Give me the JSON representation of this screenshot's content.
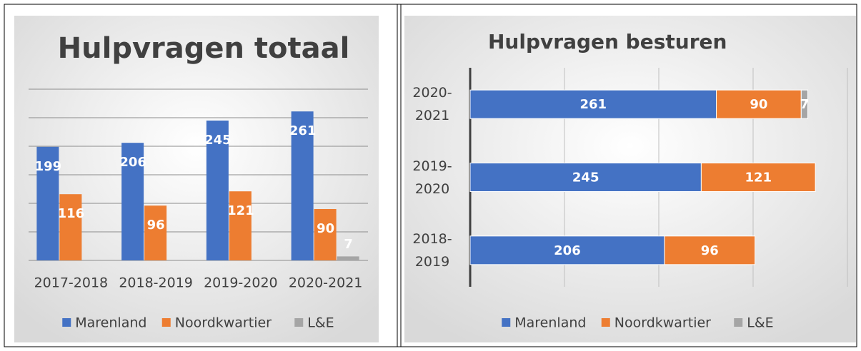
{
  "chart_data": [
    {
      "type": "bar",
      "title": "Hulpvragen totaal",
      "categories": [
        "2017-2018",
        "2018-2019",
        "2019-2020",
        "2020-2021"
      ],
      "series": [
        {
          "name": "Marenland",
          "color": "#4472c4",
          "values": [
            199,
            206,
            245,
            261
          ]
        },
        {
          "name": "Noordkwartier",
          "color": "#ed7d31",
          "values": [
            116,
            96,
            121,
            90
          ]
        },
        {
          "name": "L&E",
          "color": "#a5a5a5",
          "values": [
            null,
            null,
            null,
            7
          ]
        }
      ],
      "ylim": [
        0,
        300
      ],
      "yticks": [
        0,
        50,
        100,
        150,
        200,
        250,
        300
      ],
      "grid": true,
      "legend": "bottom"
    },
    {
      "type": "bar",
      "orientation": "horizontal",
      "stacked": true,
      "title": "Hulpvragen besturen",
      "categories": [
        "2018-2019",
        "2019-2020",
        "2020-2021"
      ],
      "series": [
        {
          "name": "Marenland",
          "color": "#4472c4",
          "values": [
            206,
            245,
            261
          ]
        },
        {
          "name": "Noordkwartier",
          "color": "#ed7d31",
          "values": [
            96,
            121,
            90
          ]
        },
        {
          "name": "L&E",
          "color": "#a5a5a5",
          "values": [
            null,
            null,
            7
          ]
        }
      ],
      "xlim": [
        0,
        400
      ],
      "xticks": [
        0,
        100,
        200,
        300,
        400
      ],
      "grid": true,
      "legend": "bottom"
    }
  ]
}
